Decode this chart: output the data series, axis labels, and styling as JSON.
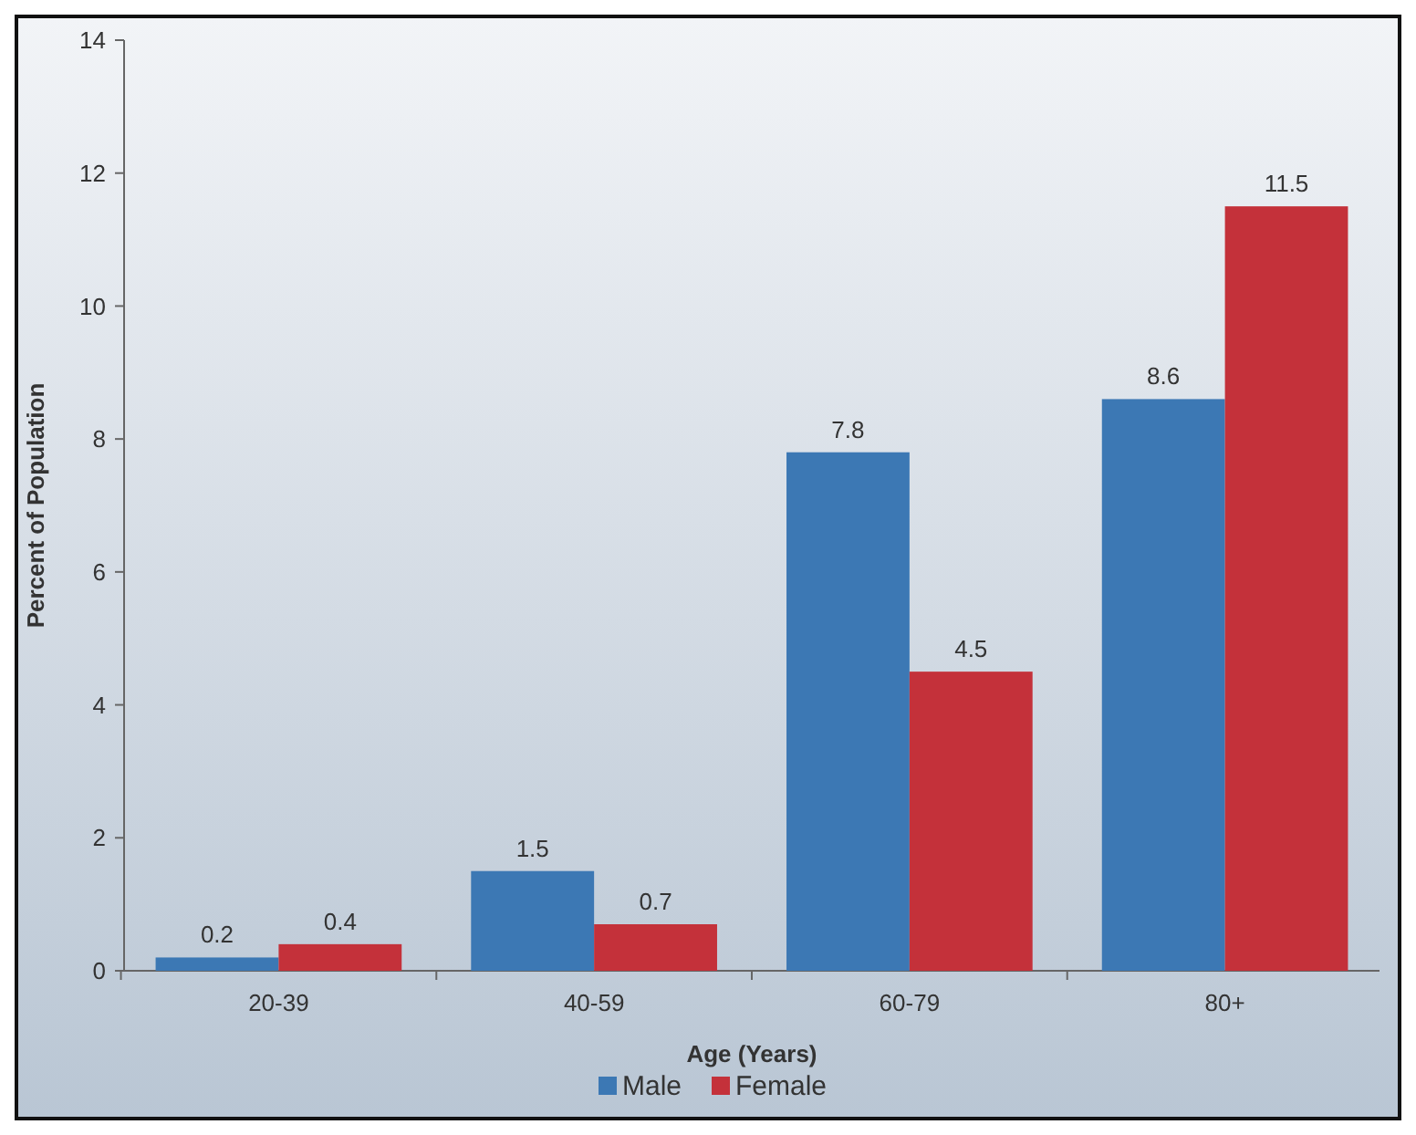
{
  "chart_data": {
    "type": "bar",
    "xlabel": "Age (Years)",
    "ylabel": "Percent of Population",
    "categories": [
      "20-39",
      "40-59",
      "60-79",
      "80+"
    ],
    "series": [
      {
        "name": "Male",
        "color": "#3c78b4",
        "values": [
          0.2,
          1.5,
          7.8,
          8.6
        ]
      },
      {
        "name": "Female",
        "color": "#c4313a",
        "values": [
          0.4,
          0.7,
          4.5,
          11.5
        ]
      }
    ],
    "ylim": [
      0,
      14
    ],
    "yticks": [
      0,
      2,
      4,
      6,
      8,
      10,
      12,
      14
    ],
    "grid": false,
    "data_labels": true,
    "legend": "bottom"
  }
}
